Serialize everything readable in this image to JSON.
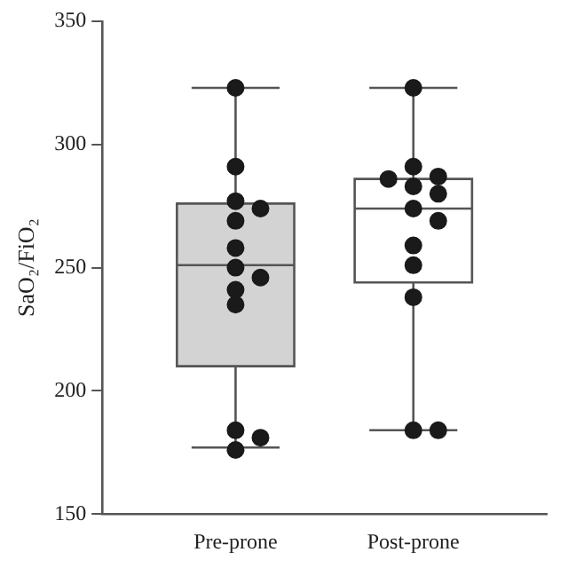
{
  "chart_data": {
    "type": "box",
    "ylabel": "SaO₂/FiO₂",
    "categories": [
      "Pre-prone",
      "Post-prone"
    ],
    "colors": [
      "#d3d3d3",
      "#ffffff"
    ],
    "boxes": [
      {
        "low": 177,
        "q1": 210,
        "median": 251,
        "q3": 276,
        "high": 323
      },
      {
        "low": 184,
        "q1": 244,
        "median": 274,
        "q3": 286,
        "high": 323
      }
    ],
    "series": [
      {
        "type": "scatter",
        "color": "#1a1a1a",
        "x": [
          "Pre-prone",
          "Pre-prone",
          "Pre-prone",
          "Pre-prone",
          "Pre-prone",
          "Pre-prone",
          "Pre-prone",
          "Pre-prone",
          "Pre-prone",
          "Pre-prone",
          "Pre-prone",
          "Pre-prone",
          "Pre-prone",
          "Post-prone",
          "Post-prone",
          "Post-prone",
          "Post-prone",
          "Post-prone",
          "Post-prone",
          "Post-prone",
          "Post-prone",
          "Post-prone",
          "Post-prone",
          "Post-prone",
          "Post-prone",
          "Post-prone"
        ],
        "values": [
          323,
          291,
          277,
          274,
          269,
          258,
          250,
          246,
          241,
          235,
          184,
          181,
          176,
          323,
          291,
          287,
          286,
          283,
          280,
          274,
          269,
          259,
          251,
          238,
          184,
          184
        ]
      }
    ],
    "ylim": [
      150,
      350
    ],
    "yticks": [
      150,
      200,
      250,
      300,
      350
    ],
    "grid": false,
    "marker": "circle",
    "legend": false
  }
}
